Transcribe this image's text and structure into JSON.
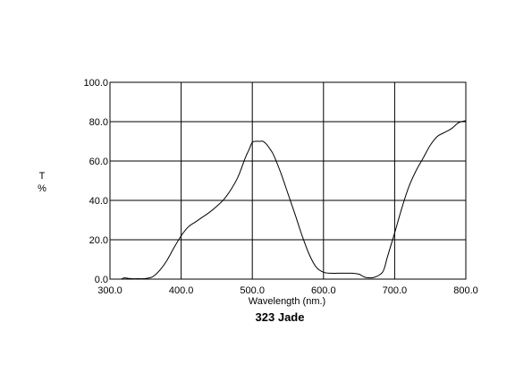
{
  "chart_data": {
    "type": "line",
    "title": "323 Jade",
    "xlabel": "Wavelength (nm.)",
    "ylabel": [
      "T",
      "%"
    ],
    "xlim": [
      300,
      800
    ],
    "ylim": [
      0,
      100
    ],
    "xticks": [
      300,
      400,
      500,
      600,
      700,
      800
    ],
    "yticks": [
      0,
      20,
      40,
      60,
      80,
      100
    ],
    "xtick_labels": [
      "300.0",
      "400.0",
      "500.0",
      "600.0",
      "700.0",
      "800.0"
    ],
    "ytick_labels": [
      "0.0",
      "20.0",
      "40.0",
      "60.0",
      "80.0",
      "100.0"
    ],
    "grid": true,
    "series": [
      {
        "color": "#000000",
        "x": [
          316,
          320,
          325,
          330,
          340,
          350,
          360,
          370,
          380,
          390,
          400,
          410,
          420,
          430,
          440,
          450,
          460,
          470,
          480,
          490,
          495,
          500,
          505,
          510,
          515,
          520,
          525,
          530,
          540,
          550,
          560,
          570,
          580,
          590,
          600,
          610,
          620,
          630,
          640,
          650,
          655,
          660,
          670,
          680,
          685,
          690,
          700,
          710,
          720,
          730,
          740,
          750,
          760,
          770,
          780,
          790,
          800
        ],
        "y": [
          0.0,
          0.6,
          0.4,
          0.2,
          0.2,
          0.3,
          1.2,
          4.5,
          9.5,
          16.0,
          22.0,
          26.5,
          29.0,
          31.5,
          34.0,
          37.0,
          40.5,
          45.5,
          52.0,
          61.5,
          65.5,
          69.5,
          70.0,
          70.0,
          70.0,
          68.5,
          66.0,
          63.0,
          54.0,
          43.5,
          33.0,
          22.0,
          12.5,
          6.0,
          3.5,
          3.0,
          3.0,
          3.0,
          3.0,
          2.5,
          1.5,
          0.8,
          0.8,
          2.5,
          5.0,
          11.5,
          23.5,
          36.0,
          47.0,
          55.0,
          61.5,
          68.0,
          72.5,
          74.5,
          76.5,
          79.5,
          80.5
        ]
      }
    ]
  }
}
